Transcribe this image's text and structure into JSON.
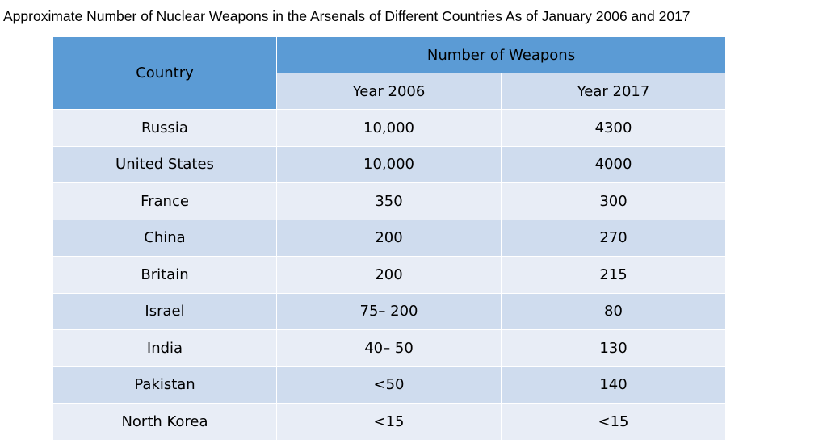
{
  "title": "Approximate Number of Nuclear Weapons in the Arsenals of Different Countries As of January 2006 and 2017",
  "header": {
    "country": "Country",
    "group": "Number of Weapons",
    "year_a": "Year 2006",
    "year_b": "Year 2017"
  },
  "rows": [
    {
      "country": "Russia",
      "y2006": "10,000",
      "y2017": "4300"
    },
    {
      "country": "United States",
      "y2006": "10,000",
      "y2017": "4000"
    },
    {
      "country": "France",
      "y2006": "350",
      "y2017": "300"
    },
    {
      "country": "China",
      "y2006": "200",
      "y2017": "270"
    },
    {
      "country": "Britain",
      "y2006": "200",
      "y2017": "215"
    },
    {
      "country": "Israel",
      "y2006": "75– 200",
      "y2017": "80"
    },
    {
      "country": "India",
      "y2006": "40– 50",
      "y2017": "130"
    },
    {
      "country": "Pakistan",
      "y2006": "<50",
      "y2017": "140"
    },
    {
      "country": "North Korea",
      "y2006": "<15",
      "y2017": "<15"
    }
  ],
  "colors": {
    "header": "#5b9bd5",
    "row_light": "#e8edf6",
    "row_dark": "#cfdcee"
  },
  "chart_data": {
    "type": "table",
    "title": "Approximate Number of Nuclear Weapons in the Arsenals of Different Countries As of January 2006 and 2017",
    "columns": [
      "Country",
      "Year 2006",
      "Year 2017"
    ],
    "column_group": "Number of Weapons",
    "rows": [
      [
        "Russia",
        "10,000",
        "4300"
      ],
      [
        "United States",
        "10,000",
        "4000"
      ],
      [
        "France",
        "350",
        "300"
      ],
      [
        "China",
        "200",
        "270"
      ],
      [
        "Britain",
        "200",
        "215"
      ],
      [
        "Israel",
        "75– 200",
        "80"
      ],
      [
        "India",
        "40– 50",
        "130"
      ],
      [
        "Pakistan",
        "<50",
        "140"
      ],
      [
        "North Korea",
        "<15",
        "<15"
      ]
    ]
  }
}
